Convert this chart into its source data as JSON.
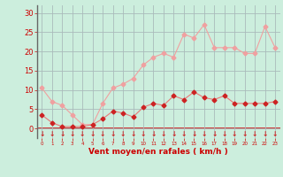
{
  "x": [
    0,
    1,
    2,
    3,
    4,
    5,
    6,
    7,
    8,
    9,
    10,
    11,
    12,
    13,
    14,
    15,
    16,
    17,
    18,
    19,
    20,
    21,
    22,
    23
  ],
  "wind_mean": [
    3.5,
    1.5,
    0.5,
    0.5,
    0.5,
    1.0,
    2.5,
    4.5,
    4.0,
    3.0,
    5.5,
    6.5,
    6.0,
    8.5,
    7.5,
    9.5,
    8.0,
    7.5,
    8.5,
    6.5,
    6.5,
    6.5,
    6.5,
    7.0
  ],
  "wind_gust": [
    10.5,
    7.0,
    6.0,
    3.5,
    1.0,
    1.0,
    6.5,
    10.5,
    11.5,
    13.0,
    16.5,
    18.5,
    19.5,
    18.5,
    24.5,
    23.5,
    27.0,
    21.0,
    21.0,
    21.0,
    19.5,
    19.5,
    26.5,
    21.0
  ],
  "line_color_mean": "#e87878",
  "line_color_gust": "#f0a0a0",
  "marker_color_mean": "#cc2222",
  "marker_color_gust": "#f0a0a0",
  "bg_color": "#cceedd",
  "grid_color": "#aabbbb",
  "axis_label_color": "#cc0000",
  "tick_color": "#cc0000",
  "xlabel": "Vent moyen/en rafales ( km/h )",
  "ylabel_ticks": [
    0,
    5,
    10,
    15,
    20,
    25,
    30
  ],
  "ylim": [
    -2.5,
    32
  ],
  "xlim": [
    -0.5,
    23.5
  ]
}
